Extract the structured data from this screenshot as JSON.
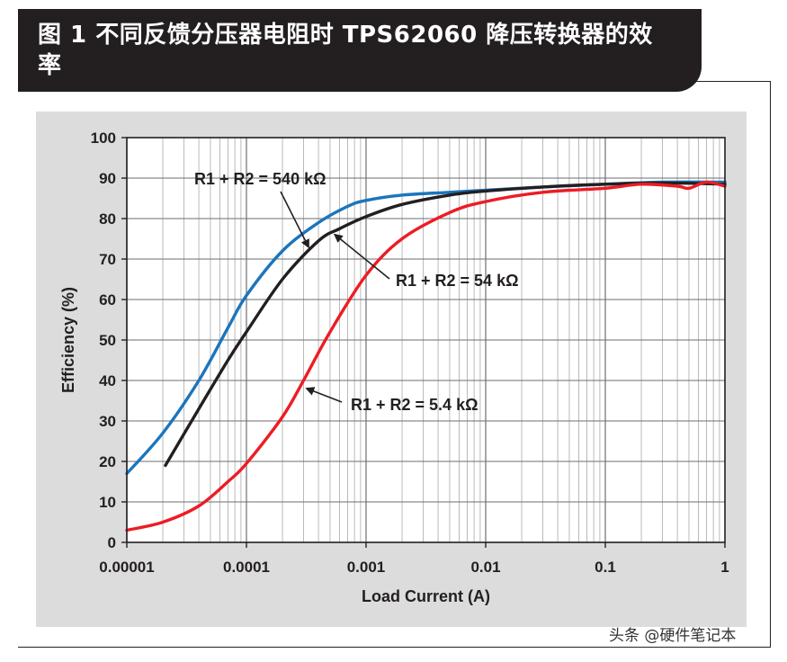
{
  "figure": {
    "title": "图 1 不同反馈分压器电阻时 TPS62060 降压转换器的效率",
    "watermark": "头条 @硬件笔记本"
  },
  "chart_data": {
    "type": "line",
    "xlabel": "Load Current (A)",
    "ylabel": "Efficiency (%)",
    "xscale": "log",
    "xlim": [
      1e-05,
      1
    ],
    "ylim": [
      0,
      100
    ],
    "x_ticks": [
      1e-05,
      0.0001,
      0.001,
      0.01,
      0.1,
      1
    ],
    "x_tick_labels": [
      "0.00001",
      "0.0001",
      "0.001",
      "0.01",
      "0.1",
      "1"
    ],
    "y_ticks": [
      0,
      10,
      20,
      30,
      40,
      50,
      60,
      70,
      80,
      90,
      100
    ],
    "y_tick_labels": [
      "0",
      "10",
      "20",
      "30",
      "40",
      "50",
      "60",
      "70",
      "80",
      "90",
      "100"
    ],
    "grid": true,
    "series": [
      {
        "name": "R1 + R2 = 540 kΩ",
        "color": "#1b75bc",
        "x": [
          1e-05,
          2e-05,
          4e-05,
          7e-05,
          0.0001,
          0.0002,
          0.0004,
          0.0007,
          0.001,
          0.002,
          0.005,
          0.01,
          0.03,
          0.1,
          0.3,
          1
        ],
        "y": [
          17,
          27,
          40,
          53,
          61,
          72,
          79,
          83,
          84.5,
          85.8,
          86.5,
          87,
          87.8,
          88.5,
          89,
          89
        ]
      },
      {
        "name": "R1 + R2 = 54 kΩ",
        "color": "#231f20",
        "x": [
          2.1e-05,
          4e-05,
          7e-05,
          0.0001,
          0.0002,
          0.0004,
          0.0006,
          0.001,
          0.002,
          0.005,
          0.01,
          0.03,
          0.1,
          0.3,
          1
        ],
        "y": [
          19,
          33,
          45,
          52,
          65,
          74.5,
          77.5,
          80.5,
          83.5,
          85.8,
          86.8,
          87.8,
          88.5,
          88.8,
          88.5
        ]
      },
      {
        "name": "R1 + R2 = 5.4 kΩ",
        "color": "#ed1c24",
        "x": [
          1e-05,
          2e-05,
          4e-05,
          7e-05,
          0.0001,
          0.0002,
          0.0003,
          0.0005,
          0.001,
          0.002,
          0.005,
          0.01,
          0.03,
          0.1,
          0.2,
          0.4,
          0.5,
          0.7,
          1
        ],
        "y": [
          3,
          5,
          9,
          15,
          19.5,
          31,
          40,
          52,
          66,
          75,
          81.5,
          84.2,
          86.5,
          87.5,
          88.5,
          88,
          87.5,
          89,
          88
        ]
      }
    ],
    "annotations": [
      {
        "text": "R1 + R2 = 540 kΩ",
        "series": "R1 + R2 = 540 kΩ"
      },
      {
        "text": "R1 + R2 = 54 kΩ",
        "series": "R1 + R2 = 54 kΩ"
      },
      {
        "text": "R1 + R2 = 5.4 kΩ",
        "series": "R1 + R2 = 5.4 kΩ"
      }
    ]
  }
}
